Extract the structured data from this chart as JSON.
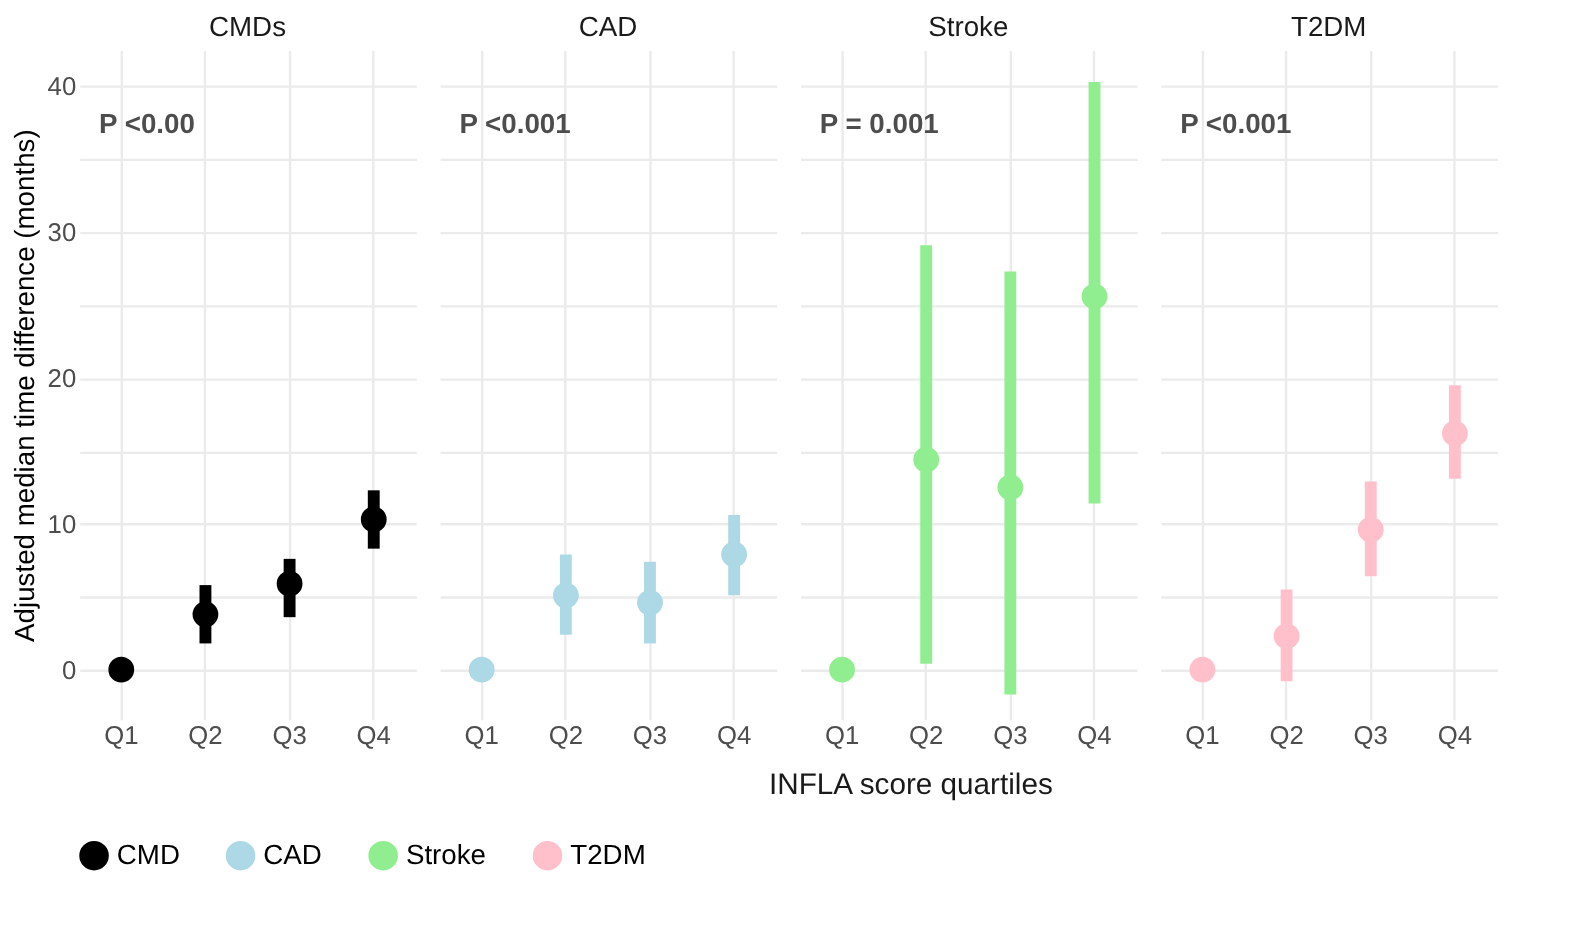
{
  "chart_data": [
    {
      "type": "scatter",
      "title": "CMDs",
      "ylabel": "Adjusted median time difference (months)",
      "categories": [
        "Q1",
        "Q2",
        "Q3",
        "Q4"
      ],
      "ylim": [
        -3.4,
        42.5
      ],
      "yticks": [
        0,
        {
          "value": 5,
          "label": null
        },
        10,
        {
          "value": 15,
          "label": null
        },
        20,
        {
          "value": 25,
          "label": null
        },
        30,
        {
          "value": 35,
          "label": null
        },
        40
      ],
      "grid": true,
      "legend": "bottom",
      "marker": "circle",
      "annotations": [
        "P <0.00",
        "INFLA score quartiles"
      ],
      "series": [
        {
          "name": "CMD",
          "color": "#000000",
          "values": [
            0,
            3.8,
            5.9,
            10.3
          ],
          "errors": [
            null,
            [
              1.8,
              5.8
            ],
            [
              3.6,
              7.6
            ],
            [
              8.3,
              12.3
            ]
          ]
        }
      ]
    },
    {
      "type": "scatter",
      "title": "CAD",
      "categories": [
        "Q1",
        "Q2",
        "Q3",
        "Q4"
      ],
      "ylim": [
        -3.4,
        42.5
      ],
      "yticks": [
        0,
        {
          "value": 5,
          "label": null
        },
        10,
        {
          "value": 15,
          "label": null
        },
        20,
        {
          "value": 25,
          "label": null
        },
        30,
        {
          "value": 35,
          "label": null
        },
        40
      ],
      "grid": true,
      "legend": "bottom",
      "marker": "circle",
      "tick_labels": "x",
      "annotations": [
        "P <0.001"
      ],
      "series": [
        {
          "name": "CAD",
          "color": "#add8e6",
          "values": [
            0,
            5.1,
            4.6,
            7.9
          ],
          "errors": [
            null,
            [
              2.4,
              7.9
            ],
            [
              1.8,
              7.4
            ],
            [
              5.1,
              10.6
            ]
          ]
        }
      ]
    },
    {
      "type": "scatter",
      "title": "Stroke",
      "categories": [
        "Q1",
        "Q2",
        "Q3",
        "Q4"
      ],
      "ylim": [
        -3.4,
        42.5
      ],
      "yticks": [
        0,
        {
          "value": 5,
          "label": null
        },
        10,
        {
          "value": 15,
          "label": null
        },
        20,
        {
          "value": 25,
          "label": null
        },
        30,
        {
          "value": 35,
          "label": null
        },
        40
      ],
      "grid": true,
      "legend": "bottom",
      "marker": "circle",
      "tick_labels": "x",
      "annotations": [
        "P = 0.001"
      ],
      "series": [
        {
          "name": "Stroke",
          "color": "#90ee90",
          "values": [
            0,
            14.4,
            12.5,
            25.6
          ],
          "errors": [
            null,
            [
              0.4,
              29.1
            ],
            [
              -1.7,
              27.3
            ],
            [
              11.4,
              40.3
            ]
          ]
        }
      ]
    },
    {
      "type": "scatter",
      "title": "T2DM",
      "categories": [
        "Q1",
        "Q2",
        "Q3",
        "Q4"
      ],
      "ylim": [
        -3.4,
        42.5
      ],
      "yticks": [
        0,
        {
          "value": 5,
          "label": null
        },
        10,
        {
          "value": 15,
          "label": null
        },
        20,
        {
          "value": 25,
          "label": null
        },
        30,
        {
          "value": 35,
          "label": null
        },
        40
      ],
      "grid": true,
      "legend": "bottom",
      "marker": "circle",
      "tick_labels": "x",
      "annotations": [
        "P <0.001"
      ],
      "series": [
        {
          "name": "T2DM",
          "color": "#ffc0cb",
          "values": [
            0,
            2.3,
            9.6,
            16.2
          ],
          "errors": [
            null,
            [
              -0.8,
              5.5
            ],
            [
              6.4,
              12.9
            ],
            [
              13.1,
              19.5
            ]
          ]
        }
      ]
    }
  ]
}
